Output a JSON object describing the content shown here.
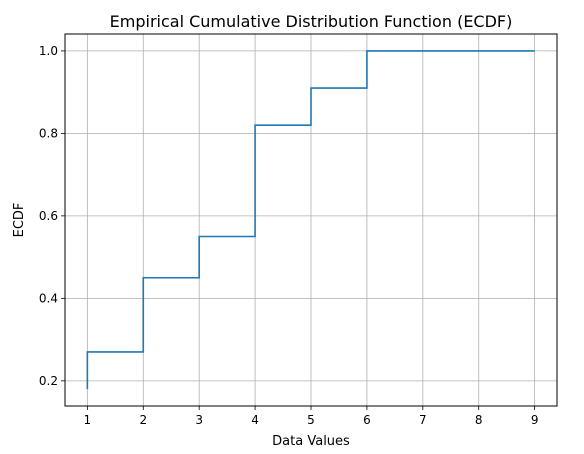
{
  "chart_data": {
    "type": "line",
    "step": "post",
    "title": "Empirical Cumulative Distribution Function (ECDF)",
    "xlabel": "Data Values",
    "ylabel": "ECDF",
    "xlim": [
      0.6,
      9.4
    ],
    "ylim": [
      0.139,
      1.041
    ],
    "grid": true,
    "x_ticks": [
      1,
      2,
      3,
      4,
      5,
      6,
      7,
      8,
      9
    ],
    "y_ticks": [
      0.2,
      0.4,
      0.6,
      0.8,
      1.0
    ],
    "y_tick_labels": [
      "0.2",
      "0.4",
      "0.6",
      "0.8",
      "1.0"
    ],
    "series": [
      {
        "color": "#1f77b4",
        "points": [
          {
            "x": 1,
            "y": 0.18
          },
          {
            "x": 1,
            "y": 0.27
          },
          {
            "x": 2,
            "y": 0.45
          },
          {
            "x": 3,
            "y": 0.55
          },
          {
            "x": 4,
            "y": 0.82
          },
          {
            "x": 5,
            "y": 0.91
          },
          {
            "x": 6,
            "y": 1.0
          },
          {
            "x": 9,
            "y": 1.0
          }
        ]
      }
    ]
  }
}
